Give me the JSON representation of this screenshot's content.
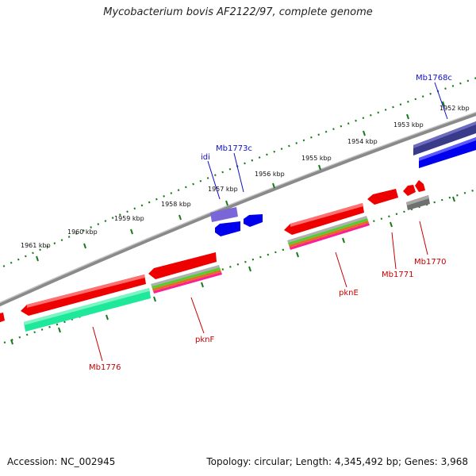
{
  "title": "Mycobacterium bovis AF2122/97, complete genome",
  "footer": {
    "accession": "Accession: NC_002945",
    "summary": "Topology: circular; Length: 4,345,492 bp; Genes: 3,968"
  },
  "colors": {
    "backbone": "#7a7a7a",
    "tick": "#1a7a1a",
    "cds_forward": "#ee0000",
    "cds_reverse": "#0000ee",
    "label_forward": "#c80000",
    "label_reverse": "#1010c8",
    "cog_teal": "#1ee89a",
    "cog_purple": "#7a66d8",
    "cog_navy": "#3a3a8a",
    "cog_gray": "#707070"
  },
  "kbp_labels": [
    "1952 kbp",
    "1953 kbp",
    "1954 kbp",
    "1955 kbp",
    "1956 kbp",
    "1957 kbp",
    "1958 kbp",
    "1959 kbp",
    "1960 kbp",
    "1961 kbp"
  ],
  "gene_labels": [
    {
      "id": "Mb1768c",
      "strand": "reverse"
    },
    {
      "id": "Mb1773c",
      "strand": "reverse"
    },
    {
      "id": "idi",
      "strand": "reverse"
    },
    {
      "id": "pknE",
      "strand": "forward"
    },
    {
      "id": "Mb1771",
      "strand": "forward"
    },
    {
      "id": "Mb1770",
      "strand": "forward"
    },
    {
      "id": "pknF",
      "strand": "forward"
    },
    {
      "id": "Mb1776",
      "strand": "forward"
    }
  ]
}
